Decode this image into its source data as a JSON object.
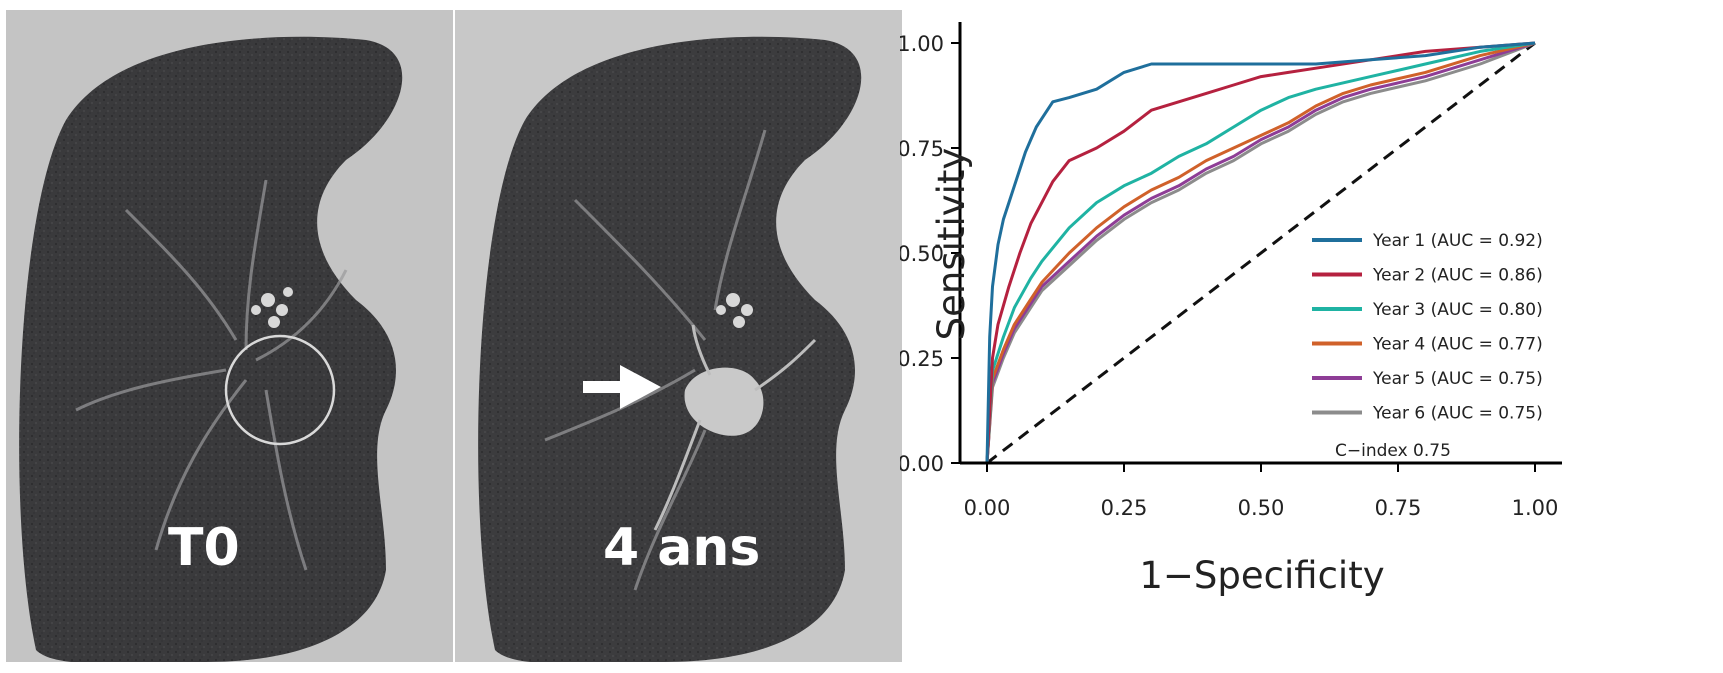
{
  "images": {
    "left_label": "T0",
    "right_label": "4 ans"
  },
  "chart_data": {
    "type": "line",
    "title": "",
    "xlabel": "1−Specificity",
    "ylabel": "Sensitivity",
    "xlim": [
      0,
      1
    ],
    "ylim": [
      0,
      1
    ],
    "x_ticks": [
      "0.00",
      "0.25",
      "0.50",
      "0.75",
      "1.00"
    ],
    "y_ticks": [
      "0.00",
      "0.25",
      "0.50",
      "0.75",
      "1.00"
    ],
    "legend_position": "bottom-right",
    "grid": false,
    "reference_line": {
      "style": "dashed",
      "color": "#111111",
      "points": [
        [
          0,
          0
        ],
        [
          1,
          1
        ]
      ]
    },
    "annotation": "C−index  0.75",
    "series": [
      {
        "name": "Year 1 (AUC = 0.92)",
        "color": "#1f6f9c",
        "points": [
          [
            0,
            0
          ],
          [
            0.005,
            0.3
          ],
          [
            0.01,
            0.42
          ],
          [
            0.02,
            0.52
          ],
          [
            0.03,
            0.58
          ],
          [
            0.04,
            0.62
          ],
          [
            0.05,
            0.66
          ],
          [
            0.06,
            0.7
          ],
          [
            0.07,
            0.74
          ],
          [
            0.08,
            0.77
          ],
          [
            0.09,
            0.8
          ],
          [
            0.1,
            0.82
          ],
          [
            0.12,
            0.86
          ],
          [
            0.15,
            0.87
          ],
          [
            0.2,
            0.89
          ],
          [
            0.25,
            0.93
          ],
          [
            0.3,
            0.95
          ],
          [
            0.4,
            0.95
          ],
          [
            0.5,
            0.95
          ],
          [
            0.6,
            0.95
          ],
          [
            0.7,
            0.96
          ],
          [
            0.8,
            0.97
          ],
          [
            0.9,
            0.99
          ],
          [
            1,
            1
          ]
        ]
      },
      {
        "name": "Year 2 (AUC = 0.86)",
        "color": "#b5213f",
        "points": [
          [
            0,
            0
          ],
          [
            0.01,
            0.25
          ],
          [
            0.02,
            0.33
          ],
          [
            0.04,
            0.42
          ],
          [
            0.06,
            0.5
          ],
          [
            0.08,
            0.57
          ],
          [
            0.1,
            0.62
          ],
          [
            0.12,
            0.67
          ],
          [
            0.15,
            0.72
          ],
          [
            0.2,
            0.75
          ],
          [
            0.25,
            0.79
          ],
          [
            0.3,
            0.84
          ],
          [
            0.35,
            0.86
          ],
          [
            0.4,
            0.88
          ],
          [
            0.45,
            0.9
          ],
          [
            0.5,
            0.92
          ],
          [
            0.55,
            0.93
          ],
          [
            0.6,
            0.94
          ],
          [
            0.7,
            0.96
          ],
          [
            0.8,
            0.98
          ],
          [
            0.9,
            0.99
          ],
          [
            1,
            1
          ]
        ]
      },
      {
        "name": "Year 3 (AUC = 0.80)",
        "color": "#1fb3a3",
        "points": [
          [
            0,
            0
          ],
          [
            0.01,
            0.22
          ],
          [
            0.03,
            0.3
          ],
          [
            0.05,
            0.37
          ],
          [
            0.08,
            0.44
          ],
          [
            0.1,
            0.48
          ],
          [
            0.15,
            0.56
          ],
          [
            0.2,
            0.62
          ],
          [
            0.25,
            0.66
          ],
          [
            0.3,
            0.69
          ],
          [
            0.35,
            0.73
          ],
          [
            0.4,
            0.76
          ],
          [
            0.45,
            0.8
          ],
          [
            0.5,
            0.84
          ],
          [
            0.55,
            0.87
          ],
          [
            0.6,
            0.89
          ],
          [
            0.7,
            0.92
          ],
          [
            0.8,
            0.95
          ],
          [
            0.9,
            0.98
          ],
          [
            1,
            1
          ]
        ]
      },
      {
        "name": "Year 4 (AUC = 0.77)",
        "color": "#d0612a",
        "points": [
          [
            0,
            0
          ],
          [
            0.01,
            0.2
          ],
          [
            0.03,
            0.27
          ],
          [
            0.05,
            0.33
          ],
          [
            0.08,
            0.39
          ],
          [
            0.1,
            0.43
          ],
          [
            0.15,
            0.5
          ],
          [
            0.2,
            0.56
          ],
          [
            0.25,
            0.61
          ],
          [
            0.3,
            0.65
          ],
          [
            0.35,
            0.68
          ],
          [
            0.4,
            0.72
          ],
          [
            0.45,
            0.75
          ],
          [
            0.5,
            0.78
          ],
          [
            0.55,
            0.81
          ],
          [
            0.6,
            0.85
          ],
          [
            0.65,
            0.88
          ],
          [
            0.7,
            0.9
          ],
          [
            0.8,
            0.93
          ],
          [
            0.9,
            0.97
          ],
          [
            1,
            1
          ]
        ]
      },
      {
        "name": "Year 5 (AUC = 0.75)",
        "color": "#8e3d96",
        "points": [
          [
            0,
            0
          ],
          [
            0.01,
            0.19
          ],
          [
            0.03,
            0.26
          ],
          [
            0.05,
            0.32
          ],
          [
            0.08,
            0.38
          ],
          [
            0.1,
            0.42
          ],
          [
            0.15,
            0.48
          ],
          [
            0.2,
            0.54
          ],
          [
            0.25,
            0.59
          ],
          [
            0.3,
            0.63
          ],
          [
            0.35,
            0.66
          ],
          [
            0.4,
            0.7
          ],
          [
            0.45,
            0.73
          ],
          [
            0.5,
            0.77
          ],
          [
            0.55,
            0.8
          ],
          [
            0.6,
            0.84
          ],
          [
            0.65,
            0.87
          ],
          [
            0.7,
            0.89
          ],
          [
            0.8,
            0.92
          ],
          [
            0.9,
            0.96
          ],
          [
            1,
            1
          ]
        ]
      },
      {
        "name": "Year 6 (AUC = 0.75)",
        "color": "#8c8c8c",
        "points": [
          [
            0,
            0
          ],
          [
            0.01,
            0.18
          ],
          [
            0.03,
            0.25
          ],
          [
            0.05,
            0.31
          ],
          [
            0.08,
            0.37
          ],
          [
            0.1,
            0.41
          ],
          [
            0.15,
            0.47
          ],
          [
            0.2,
            0.53
          ],
          [
            0.25,
            0.58
          ],
          [
            0.3,
            0.62
          ],
          [
            0.35,
            0.65
          ],
          [
            0.4,
            0.69
          ],
          [
            0.45,
            0.72
          ],
          [
            0.5,
            0.76
          ],
          [
            0.55,
            0.79
          ],
          [
            0.6,
            0.83
          ],
          [
            0.65,
            0.86
          ],
          [
            0.7,
            0.88
          ],
          [
            0.8,
            0.91
          ],
          [
            0.9,
            0.95
          ],
          [
            1,
            1
          ]
        ]
      }
    ]
  }
}
